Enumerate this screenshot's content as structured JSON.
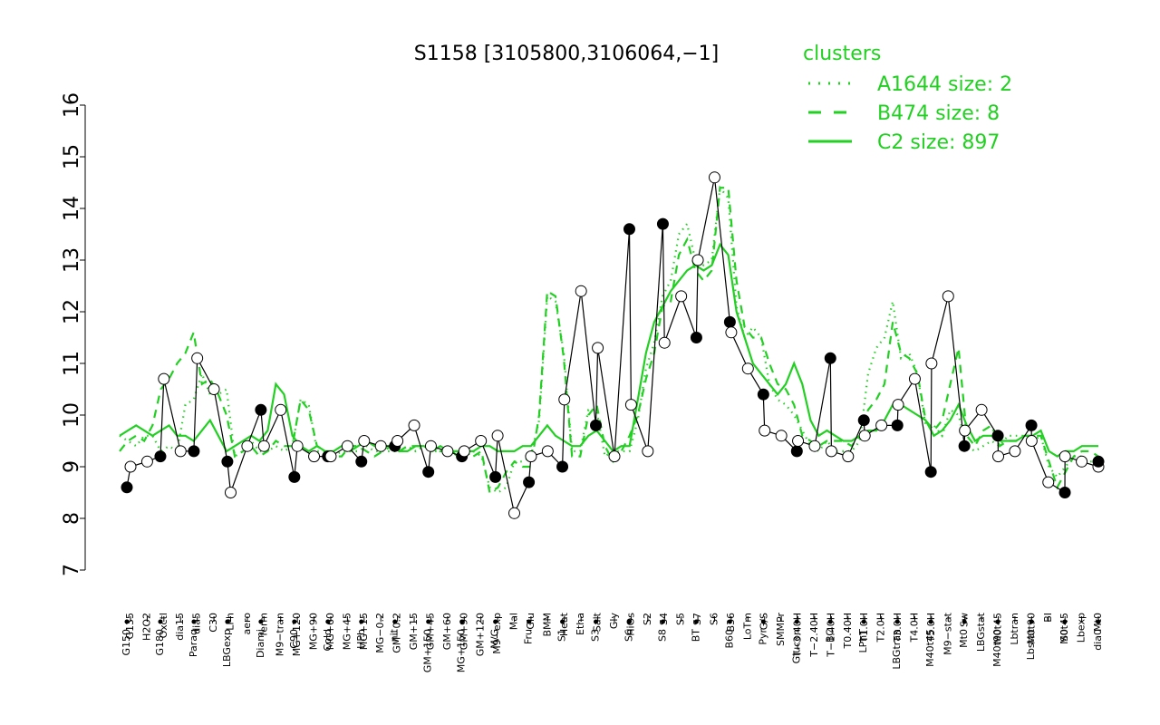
{
  "chart_data": {
    "type": "line",
    "title": "S1158 [3105800,3106064,−1]",
    "xlabel": "",
    "ylabel": "",
    "ylim": [
      7,
      16
    ],
    "yticks": [
      7,
      8,
      9,
      10,
      11,
      12,
      13,
      14,
      15,
      16
    ],
    "xtick_labels_upper": [
      "G135",
      "H2O2",
      "Oxctl",
      "dia15",
      "dia5",
      "C30",
      "LPh",
      "aero",
      "ferm",
      "M9−tran",
      "MG+120",
      "MG+90",
      "MG+60",
      "MG+45",
      "MG+15",
      "MG−0.2",
      "GM−0.2",
      "GM+15",
      "GM+45",
      "GM+60",
      "GM+90",
      "GM+120",
      "M9−exp",
      "Mal",
      "Glu",
      "BMM",
      "Heat",
      "Etha",
      "Salt",
      "Gly",
      "HiOs",
      "S2",
      "S4",
      "S5",
      "S7",
      "S6",
      "B36",
      "LoTm",
      "G/S",
      "SMMPr",
      "T−3.40H",
      "T−2.40H",
      "T−1.40H",
      "T0.40H",
      "T1.0H",
      "T2.0H",
      "T3.0H",
      "T4.0H",
      "T5.0H",
      "M9−stat",
      "Sw",
      "LBGstat",
      "M0t45",
      "Lbtran",
      "M0t90",
      "BI",
      "M0t45",
      "Lbexp",
      "Mt0"
    ],
    "xtick_labels_lower": [
      "G150",
      "G180",
      "Paraq",
      "LBGexp",
      "Diami",
      "C90",
      "Cold",
      "HPh",
      "nit",
      "GM+150",
      "MG+150",
      "M/G",
      "Fru",
      "S1",
      "S3",
      "S6",
      "S8",
      "BT",
      "B60",
      "Pyr",
      "Glucon",
      "BC",
      "LPhT",
      "LBGtran",
      "M40t45",
      "Mt0",
      "M40t90",
      "Lbstat",
      "S0",
      "dia0"
    ],
    "x": [
      1,
      2,
      3,
      4,
      5,
      6,
      7,
      8,
      9,
      10,
      11,
      12,
      13,
      14,
      15,
      16,
      17,
      18,
      19,
      20,
      21,
      22,
      23,
      24,
      25,
      26,
      27,
      28,
      29,
      30,
      31,
      32,
      33,
      34,
      35,
      36,
      37,
      38,
      39,
      40,
      41,
      42,
      43,
      44,
      45,
      46,
      47,
      48,
      49,
      50,
      51,
      52,
      53,
      54,
      55,
      56,
      57,
      58,
      59,
      60,
      61,
      62,
      63,
      64,
      65,
      66,
      67,
      68,
      69,
      70,
      71,
      72,
      73,
      74,
      75,
      76,
      77,
      78,
      79,
      80,
      81,
      82,
      83,
      84,
      85,
      86,
      87,
      88,
      89,
      90,
      91,
      92,
      93,
      94,
      95,
      96,
      97,
      98,
      99,
      100,
      101,
      102,
      103,
      104,
      105,
      106,
      107,
      108,
      109,
      110,
      111,
      112,
      113,
      114,
      115,
      116,
      117,
      118,
      119,
      120
    ],
    "series": [
      {
        "name": "A1644 size: 2",
        "style": "dotted",
        "values": [
          9.6,
          9.5,
          9.4,
          9.6,
          9.6,
          9.3,
          9.4,
          9.3,
          10.2,
          10.3,
          10.8,
          10.4,
          10.4,
          10.5,
          9.2,
          9.3,
          9.5,
          9.3,
          9.3,
          9.4,
          9.3,
          9.4,
          10.3,
          10.2,
          9.3,
          9.3,
          9.2,
          9.3,
          9.3,
          9.3,
          9.4,
          9.3,
          9.3,
          9.3,
          9.3,
          9.4,
          9.3,
          9.4,
          9.3,
          9.3,
          9.3,
          9.3,
          9.2,
          9.3,
          9.2,
          8.6,
          8.5,
          8.6,
          9.1,
          9.1,
          9.2,
          9.9,
          12.3,
          12.2,
          11.2,
          9.3,
          9.3,
          10.1,
          10.1,
          9.2,
          9.3,
          9.3,
          9.3,
          9.9,
          10.9,
          11.4,
          12.3,
          12.6,
          13.5,
          13.7,
          13.0,
          12.9,
          13.0,
          14.4,
          14.2,
          12.1,
          11.5,
          11.7,
          11.5,
          10.6,
          10.3,
          10.2,
          10.0,
          9.7,
          9.4,
          9.3,
          9.5,
          9.3,
          9.3,
          9.3,
          9.5,
          10.8,
          11.3,
          11.5,
          12.2,
          11.1,
          11.2,
          10.8,
          9.8,
          9.8,
          9.6,
          10.1,
          10.0,
          9.4,
          9.3,
          9.4,
          9.5,
          9.4,
          9.6,
          9.6,
          9.6,
          9.5,
          9.6,
          9.0,
          8.8,
          9.0,
          9.2,
          9.2,
          9.1,
          9.1
        ]
      },
      {
        "name": "B474 size: 8",
        "style": "dashed",
        "values": [
          9.3,
          9.5,
          9.6,
          9.5,
          9.8,
          10.5,
          10.7,
          11.0,
          11.2,
          11.6,
          10.6,
          10.7,
          10.4,
          10.0,
          9.2,
          9.3,
          9.4,
          9.2,
          9.3,
          9.5,
          9.4,
          9.4,
          10.3,
          10.1,
          9.4,
          9.3,
          9.2,
          9.2,
          9.4,
          9.4,
          9.3,
          9.2,
          9.3,
          9.4,
          9.3,
          9.4,
          9.4,
          9.4,
          9.4,
          9.3,
          9.4,
          9.2,
          9.3,
          9.2,
          9.3,
          8.5,
          8.6,
          8.9,
          9.1,
          9.0,
          9.0,
          10.0,
          12.4,
          12.3,
          11.1,
          9.2,
          9.2,
          10.0,
          10.2,
          9.4,
          9.1,
          9.3,
          9.6,
          10.0,
          10.7,
          11.2,
          12.1,
          12.2,
          13.1,
          13.4,
          12.8,
          12.6,
          12.8,
          14.4,
          14.4,
          12.6,
          11.7,
          11.5,
          11.5,
          11.0,
          10.6,
          10.5,
          10.2,
          9.6,
          9.5,
          9.4,
          9.5,
          9.5,
          9.5,
          9.4,
          9.6,
          10.1,
          10.3,
          10.6,
          11.8,
          11.2,
          11.1,
          10.8,
          9.9,
          9.7,
          9.9,
          10.6,
          11.3,
          9.6,
          9.4,
          9.7,
          9.8,
          9.4,
          9.5,
          9.5,
          9.6,
          9.6,
          9.6,
          9.1,
          8.6,
          8.9,
          9.2,
          9.3,
          9.3,
          9.2
        ]
      },
      {
        "name": "C2 size: 897",
        "style": "solid",
        "values": [
          9.6,
          9.7,
          9.8,
          9.7,
          9.6,
          9.7,
          9.8,
          9.6,
          9.6,
          9.5,
          9.7,
          9.9,
          9.6,
          9.3,
          9.4,
          9.5,
          9.6,
          9.5,
          9.7,
          10.6,
          10.4,
          9.6,
          9.4,
          9.3,
          9.4,
          9.3,
          9.3,
          9.4,
          9.3,
          9.4,
          9.5,
          9.4,
          9.4,
          9.4,
          9.3,
          9.3,
          9.4,
          9.4,
          9.3,
          9.4,
          9.3,
          9.3,
          9.3,
          9.3,
          9.4,
          9.4,
          9.3,
          9.3,
          9.3,
          9.4,
          9.4,
          9.6,
          9.8,
          9.6,
          9.5,
          9.4,
          9.4,
          9.6,
          9.7,
          9.5,
          9.3,
          9.4,
          9.4,
          10.3,
          11.2,
          11.8,
          12.1,
          12.4,
          12.6,
          12.8,
          12.9,
          12.8,
          12.9,
          13.3,
          13.1,
          12.0,
          11.5,
          11.0,
          10.8,
          10.6,
          10.4,
          10.6,
          11.0,
          10.6,
          9.9,
          9.6,
          9.7,
          9.6,
          9.5,
          9.5,
          9.6,
          9.7,
          9.7,
          9.9,
          10.2,
          10.2,
          10.1,
          10.0,
          9.9,
          9.6,
          9.7,
          9.9,
          10.2,
          9.8,
          9.5,
          9.6,
          9.6,
          9.5,
          9.5,
          9.5,
          9.6,
          9.6,
          9.7,
          9.3,
          9.2,
          9.3,
          9.3,
          9.4,
          9.4,
          9.4
        ]
      }
    ],
    "points_upper": [
      9.0,
      9.1,
      10.7,
      9.3,
      11.1,
      10.5,
      8.5,
      9.4,
      9.4,
      10.1,
      9.4,
      9.2,
      9.2,
      9.4,
      9.5,
      9.4,
      9.5,
      9.8,
      9.4,
      9.3,
      9.3,
      9.5,
      9.6,
      8.1,
      9.2,
      9.3,
      10.3,
      12.4,
      11.3,
      9.2,
      10.2,
      9.3,
      11.4,
      12.3,
      13.0,
      14.6,
      11.6,
      10.9,
      9.7,
      9.6,
      9.5,
      9.4,
      9.3,
      9.2,
      9.6,
      9.8,
      10.2,
      10.7,
      11.0,
      12.3,
      9.7,
      10.1,
      9.2,
      9.3,
      9.5,
      8.7,
      9.2,
      9.1,
      9.0
    ],
    "points_lower": [
      8.6,
      9.2,
      9.3,
      9.1,
      10.1,
      8.8,
      9.2,
      9.1,
      9.4,
      8.9,
      9.2,
      8.8,
      8.7,
      9.0,
      9.8,
      13.6,
      13.7,
      11.5,
      11.8,
      10.4,
      9.3,
      11.1,
      9.9,
      9.8,
      8.9,
      9.4,
      9.6,
      9.8,
      8.5,
      9.1
    ],
    "legend": {
      "title": "clusters",
      "position": "top-right",
      "entries": [
        "A1644 size: 2",
        "B474 size: 8",
        "C2 size: 897"
      ]
    },
    "grid": false,
    "line_color": "#22d022"
  }
}
